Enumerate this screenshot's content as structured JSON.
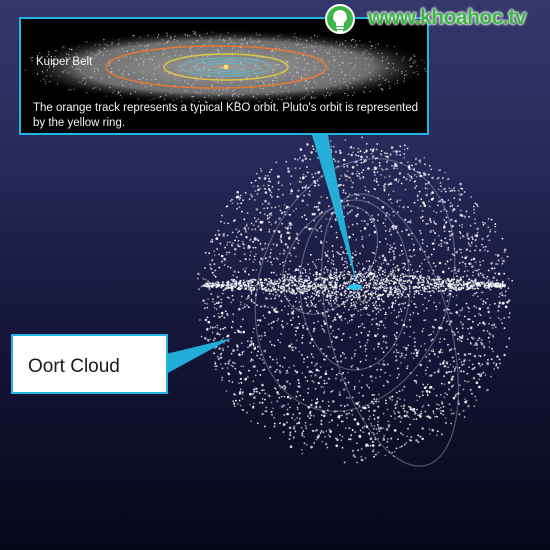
{
  "inset": {
    "title": "Kuiper Belt",
    "caption": "The orange track represents a typical KBO orbit. Pluto's orbit is represented by the yellow ring."
  },
  "main": {
    "label": "Oort Cloud"
  },
  "watermark": {
    "text": "www.khoahoc.tv"
  },
  "colors": {
    "pointer_border": "#23b5e0",
    "kbo_orbit": "#e07a3a",
    "pluto_orbit": "#d8c840",
    "background_top": "#34376a",
    "background_bottom": "#07071a",
    "watermark": "#3fb548"
  }
}
